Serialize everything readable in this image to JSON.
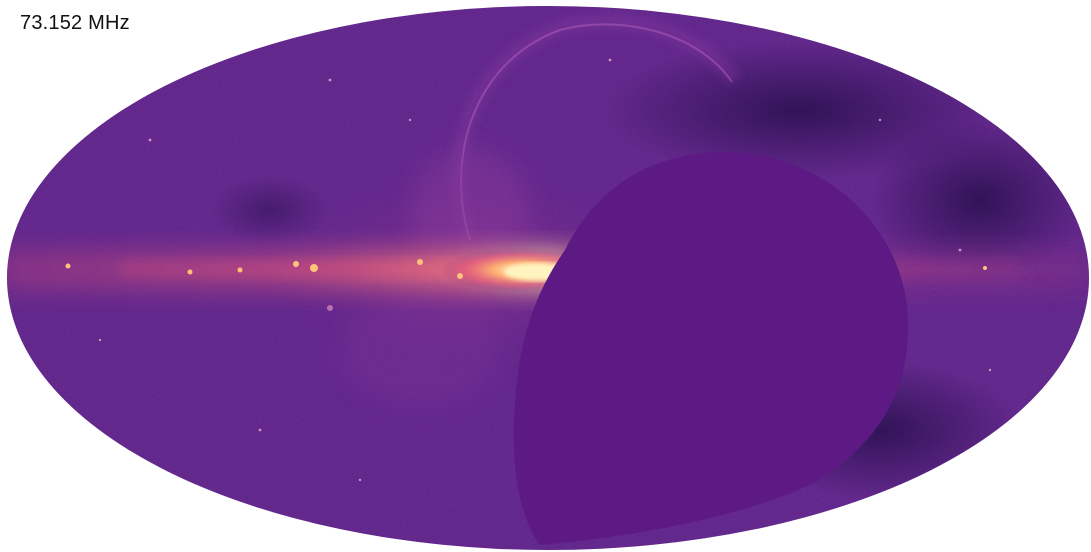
{
  "map": {
    "frequency_label": "73.152 MHz",
    "projection": "mollweide",
    "colormap": "magma",
    "colors": {
      "background": "#5a1f86",
      "masked_region": "#5e1a84",
      "plane_core": "#fff1b8",
      "plane_bright": "#ff9a5c",
      "plane_mid": "#e0457a",
      "loop_arc": "#7b35a0",
      "dark_patch": "#2a1050"
    }
  }
}
